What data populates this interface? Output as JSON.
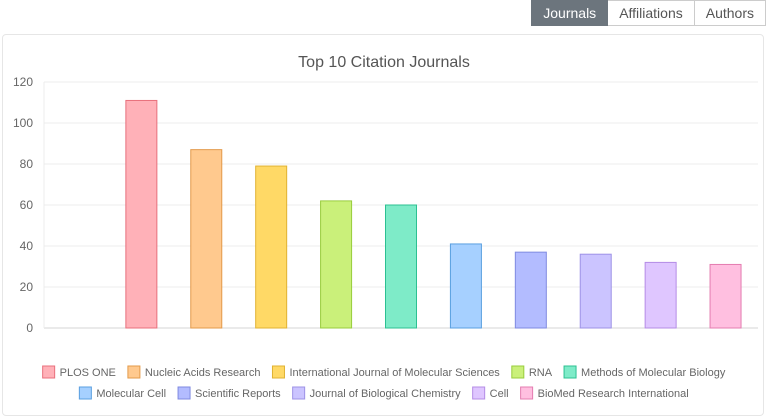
{
  "tabs": [
    {
      "label": "Journals",
      "active": true
    },
    {
      "label": "Affiliations",
      "active": false
    },
    {
      "label": "Authors",
      "active": false
    }
  ],
  "chart_data": {
    "type": "bar",
    "title": "Top 10 Citation Journals",
    "categories": [
      "PLOS ONE",
      "Nucleic Acids Research",
      "International Journal of Molecular Sciences",
      "RNA",
      "Methods of Molecular Biology",
      "Molecular Cell",
      "Scientific Reports",
      "Journal of Biological Chemistry",
      "Cell",
      "BioMed Research International"
    ],
    "values": [
      111,
      87,
      79,
      62,
      60,
      41,
      37,
      36,
      32,
      31
    ],
    "colors": [
      {
        "fill": "#ffb1b8",
        "stroke": "#e8707c"
      },
      {
        "fill": "#ffc98e",
        "stroke": "#e39a4a"
      },
      {
        "fill": "#ffd966",
        "stroke": "#e0b232"
      },
      {
        "fill": "#caf07a",
        "stroke": "#98cc3c"
      },
      {
        "fill": "#7eebc8",
        "stroke": "#2cc092"
      },
      {
        "fill": "#a6d0ff",
        "stroke": "#5a9fe0"
      },
      {
        "fill": "#b3bcff",
        "stroke": "#7f8ae0"
      },
      {
        "fill": "#cbc4ff",
        "stroke": "#9d92e6"
      },
      {
        "fill": "#dfc6ff",
        "stroke": "#b48ce6"
      },
      {
        "fill": "#ffbfe0",
        "stroke": "#e47cb0"
      }
    ],
    "ylim": [
      0,
      120
    ],
    "yticks": [
      0,
      20,
      40,
      60,
      80,
      100,
      120
    ],
    "grid": true,
    "legend": "bottom"
  }
}
